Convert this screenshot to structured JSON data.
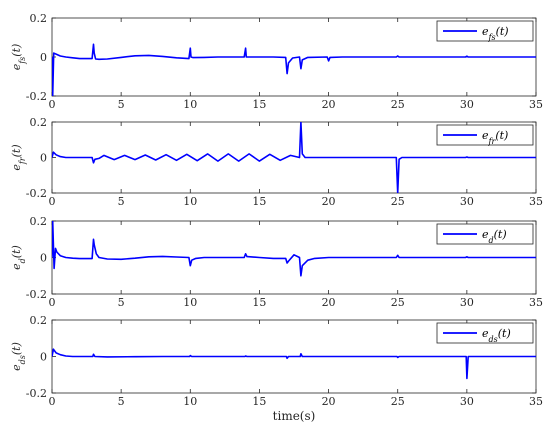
{
  "chart_data": [
    {
      "type": "line",
      "ylabel": "e_{fs}(t)",
      "xlim": [
        0,
        35
      ],
      "ylim": [
        -0.2,
        0.2
      ],
      "xticks": [
        0,
        5,
        10,
        15,
        20,
        25,
        30,
        35
      ],
      "yticks": [
        -0.2,
        0,
        0.2
      ],
      "legend_position": "top-right",
      "series": [
        {
          "name": "e_{fs}(t)",
          "color": "#0000ff",
          "x": [
            0,
            0.05,
            0.12,
            0.3,
            0.6,
            1.0,
            1.5,
            2.0,
            2.5,
            2.9,
            3.0,
            3.05,
            3.15,
            3.4,
            4,
            5,
            6,
            7,
            8,
            9,
            9.9,
            10.0,
            10.05,
            10.2,
            11,
            12,
            13,
            13.9,
            14.0,
            14.05,
            14.2,
            15,
            16,
            16.9,
            17.0,
            17.1,
            17.4,
            17.9,
            18.0,
            18.1,
            18.5,
            19.9,
            20.0,
            20.1,
            21,
            24.9,
            25.0,
            25.1,
            29.9,
            30.0,
            30.1,
            35
          ],
          "y": [
            0.0,
            -0.2,
            0.02,
            0.015,
            0.005,
            0.0,
            -0.004,
            -0.008,
            -0.008,
            -0.008,
            0.065,
            0.02,
            -0.01,
            -0.012,
            -0.01,
            -0.002,
            0.006,
            0.008,
            0.003,
            -0.004,
            -0.008,
            0.045,
            0.0,
            -0.003,
            -0.002,
            0.0,
            0.0,
            0.0,
            0.045,
            0.0,
            0.0,
            0.0,
            0.0,
            -0.002,
            -0.085,
            -0.03,
            -0.005,
            0.0,
            -0.06,
            -0.015,
            -0.002,
            0.0,
            -0.02,
            -0.002,
            0.0,
            0.0,
            0.005,
            0.0,
            0.0,
            0.004,
            0.0,
            0.0
          ]
        }
      ]
    },
    {
      "type": "line",
      "ylabel": "e_{fr}(t)",
      "xlim": [
        0,
        35
      ],
      "ylim": [
        -0.2,
        0.2
      ],
      "xticks": [
        0,
        5,
        10,
        15,
        20,
        25,
        30,
        35
      ],
      "yticks": [
        -0.2,
        0,
        0.2
      ],
      "legend_position": "top-right",
      "series": [
        {
          "name": "e_{fr}(t)",
          "color": "#0000ff",
          "x": [
            0,
            0.1,
            0.3,
            0.6,
            1.0,
            1.5,
            2.0,
            2.5,
            2.9,
            3.0,
            3.1,
            3.4,
            3.75,
            4.5,
            5.25,
            6.0,
            6.75,
            7.5,
            8.25,
            9.0,
            9.75,
            10.5,
            11.25,
            12.0,
            12.75,
            13.5,
            14.25,
            15.0,
            15.75,
            16.5,
            17.25,
            17.9,
            18.0,
            18.1,
            18.3,
            19,
            20,
            24.9,
            25.0,
            25.1,
            25.3,
            29.9,
            30.0,
            30.1,
            35
          ],
          "y": [
            0.0,
            0.03,
            0.015,
            0.005,
            0.0,
            0.0,
            0.0,
            0.0,
            0.0,
            -0.03,
            -0.01,
            -0.005,
            0.012,
            -0.012,
            0.012,
            -0.012,
            0.014,
            -0.014,
            0.016,
            -0.016,
            0.018,
            -0.018,
            0.02,
            -0.02,
            0.02,
            -0.02,
            0.02,
            -0.02,
            0.018,
            -0.016,
            0.012,
            0.0,
            0.2,
            0.02,
            0.0,
            0.0,
            0.0,
            0.0,
            -0.2,
            -0.01,
            0.0,
            0.0,
            0.003,
            0.0,
            0.0
          ]
        }
      ]
    },
    {
      "type": "line",
      "ylabel": "e_{d}(t)",
      "xlim": [
        0,
        35
      ],
      "ylim": [
        -0.2,
        0.2
      ],
      "xticks": [
        0,
        5,
        10,
        15,
        20,
        25,
        30,
        35
      ],
      "yticks": [
        -0.2,
        0,
        0.2
      ],
      "legend_position": "top-right",
      "series": [
        {
          "name": "e_{d}(t)",
          "color": "#0000ff",
          "x": [
            0,
            0.05,
            0.15,
            0.25,
            0.35,
            0.6,
            1.0,
            1.5,
            2.0,
            2.5,
            2.9,
            3.0,
            3.05,
            3.2,
            3.4,
            4,
            5,
            6,
            7,
            8,
            9,
            9.9,
            10.0,
            10.1,
            10.4,
            11,
            12,
            13,
            13.9,
            14.0,
            14.1,
            15,
            16,
            16.9,
            17.0,
            17.1,
            17.5,
            17.9,
            18.0,
            18.1,
            18.5,
            19,
            20,
            24.9,
            25.0,
            25.1,
            29.9,
            30.0,
            30.1,
            35
          ],
          "y": [
            0.0,
            0.2,
            -0.06,
            0.05,
            0.03,
            0.01,
            0.0,
            -0.004,
            -0.006,
            -0.006,
            -0.006,
            0.1,
            0.07,
            0.02,
            0.0,
            -0.008,
            -0.01,
            -0.004,
            0.004,
            0.006,
            0.003,
            0.0,
            -0.045,
            -0.015,
            -0.005,
            0.0,
            0.0,
            0.0,
            0.0,
            0.02,
            0.005,
            0.0,
            -0.005,
            -0.005,
            -0.03,
            -0.02,
            0.015,
            0.0,
            -0.1,
            -0.045,
            -0.015,
            -0.005,
            0.0,
            0.0,
            0.012,
            0.0,
            0.0,
            0.004,
            0.0,
            0.0
          ]
        }
      ]
    },
    {
      "type": "line",
      "ylabel": "e_{ds}(t)",
      "xlabel": "time(s)",
      "xlim": [
        0,
        35
      ],
      "ylim": [
        -0.2,
        0.2
      ],
      "xticks": [
        0,
        5,
        10,
        15,
        20,
        25,
        30,
        35
      ],
      "yticks": [
        -0.2,
        0,
        0.2
      ],
      "legend_position": "top-right",
      "series": [
        {
          "name": "e_{ds}(t)",
          "color": "#0000ff",
          "x": [
            0,
            0.1,
            0.3,
            0.6,
            1.0,
            1.5,
            2.5,
            2.95,
            3.0,
            3.1,
            4,
            6,
            8,
            9.95,
            10.0,
            10.1,
            12,
            13.95,
            14.0,
            14.1,
            16,
            16.95,
            17.0,
            17.1,
            17.95,
            18.0,
            18.1,
            20,
            24.95,
            25.0,
            25.1,
            29.95,
            30.0,
            30.1,
            35
          ],
          "y": [
            0.0,
            0.04,
            0.02,
            0.01,
            0.003,
            0.0,
            0.0,
            0.0,
            0.012,
            0.0,
            -0.002,
            -0.001,
            0.0,
            0.0,
            0.005,
            0.0,
            0.0,
            0.0,
            0.003,
            0.0,
            0.0,
            0.0,
            -0.01,
            0.0,
            0.0,
            0.015,
            0.0,
            0.0,
            0.0,
            -0.005,
            0.0,
            0.0,
            -0.12,
            0.0,
            0.0
          ]
        }
      ]
    }
  ]
}
